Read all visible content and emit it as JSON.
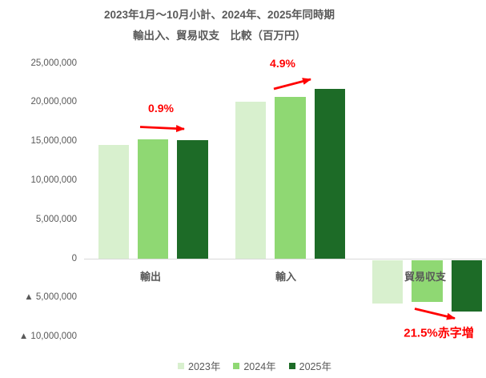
{
  "title": {
    "line1": "2023年1月～10月小計、2024年、2025年同時期",
    "line2": "輸出入、貿易収支　比較（百万円）"
  },
  "chart_data": {
    "type": "bar",
    "title": "2023年1月～10月小計、2024年、2025年同時期 輸出入、貿易収支　比較（百万円）",
    "unit": "百万円",
    "categories": [
      "輸出",
      "輸入",
      "貿易収支"
    ],
    "series": [
      {
        "name": "2023年",
        "color": "#D8F0CE",
        "values": [
          14550000,
          20100000,
          -5550000
        ]
      },
      {
        "name": "2024年",
        "color": "#8FD873",
        "values": [
          15350000,
          20750000,
          -5400000
        ]
      },
      {
        "name": "2025年",
        "color": "#1D6B27",
        "values": [
          15210000,
          21770000,
          -6560000
        ]
      }
    ],
    "ylim": [
      -10000000,
      25000000
    ],
    "y_tick_interval": 5000000,
    "grid": false,
    "legend_position": "bottom",
    "y_ticks": [
      {
        "label": "25,000,000",
        "value": 25000000
      },
      {
        "label": "20,000,000",
        "value": 20000000
      },
      {
        "label": "15,000,000",
        "value": 15000000
      },
      {
        "label": "10,000,000",
        "value": 10000000
      },
      {
        "label": "5,000,000",
        "value": 5000000
      },
      {
        "label": "0",
        "value": 0
      },
      {
        "label": "▲ 5,000,000",
        "value": -5000000
      },
      {
        "label": "▲ 10,000,000",
        "value": -10000000
      }
    ],
    "annotations": [
      {
        "text": "0.9%",
        "color": "#FF0000",
        "target": "輸出 2024年→2025年"
      },
      {
        "text": "4.9%",
        "color": "#FF0000",
        "target": "輸入 2024年→2025年"
      },
      {
        "text": "21.5%赤字増",
        "color": "#FF0000",
        "target": "貿易収支 2024年→2025年"
      }
    ],
    "accent_red": "#FF0000",
    "axis_line_color": "#D9D9D9",
    "text_color": "#595959"
  }
}
